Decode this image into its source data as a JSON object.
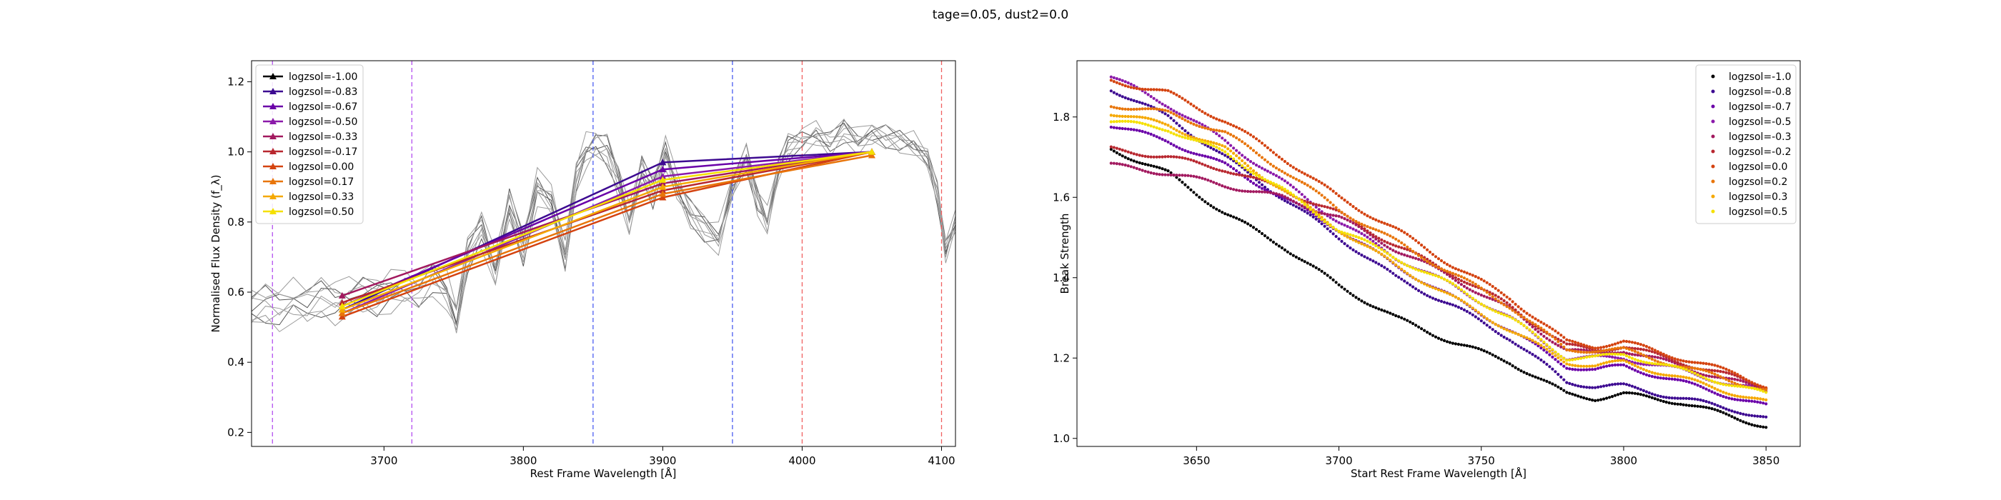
{
  "figure": {
    "suptitle": "tage=0.05, dust2=0.0"
  },
  "chart_data": [
    {
      "type": "line",
      "xlabel": "Rest Frame Wavelength [Å]",
      "ylabel": "Normalised Flux Density (f_λ)",
      "xlim": [
        3605,
        4110
      ],
      "ylim": [
        0.16,
        1.26
      ],
      "xticks": [
        3700,
        3800,
        3900,
        4000,
        4100
      ],
      "yticks": [
        0.2,
        0.4,
        0.6,
        0.8,
        1.0,
        1.2
      ],
      "xtick_labels": [
        "3700",
        "3800",
        "3900",
        "4000",
        "4100"
      ],
      "ytick_labels": [
        "0.2",
        "0.4",
        "0.6",
        "0.8",
        "1.0",
        "1.2"
      ],
      "grid": false,
      "legend_position": "upper-left",
      "vlines": [
        {
          "x": 3620,
          "color": "#b44ff0"
        },
        {
          "x": 3720,
          "color": "#b44ff0"
        },
        {
          "x": 3850,
          "color": "#4a5cf0"
        },
        {
          "x": 3950,
          "color": "#4a5cf0"
        },
        {
          "x": 4000,
          "color": "#f06060"
        },
        {
          "x": 4100,
          "color": "#f06060"
        }
      ],
      "background_spectrum": {
        "x": [
          3605,
          3615,
          3625,
          3635,
          3645,
          3655,
          3665,
          3675,
          3685,
          3695,
          3705,
          3715,
          3725,
          3735,
          3745,
          3752,
          3760,
          3770,
          3780,
          3790,
          3800,
          3810,
          3820,
          3830,
          3838,
          3845,
          3852,
          3860,
          3868,
          3876,
          3885,
          3893,
          3902,
          3910,
          3920,
          3930,
          3940,
          3950,
          3960,
          3968,
          3975,
          3983,
          3990,
          4000,
          4010,
          4020,
          4030,
          4040,
          4050,
          4060,
          4070,
          4080,
          4090,
          4097,
          4103,
          4110
        ],
        "y": [
          0.55,
          0.56,
          0.55,
          0.57,
          0.56,
          0.58,
          0.57,
          0.58,
          0.59,
          0.58,
          0.6,
          0.61,
          0.6,
          0.64,
          0.6,
          0.52,
          0.7,
          0.78,
          0.66,
          0.85,
          0.72,
          0.9,
          0.86,
          0.7,
          0.93,
          1.0,
          1.02,
          1.0,
          0.92,
          0.8,
          0.95,
          0.88,
          1.0,
          0.9,
          0.82,
          0.78,
          0.75,
          0.9,
          0.98,
          0.86,
          0.8,
          0.95,
          1.01,
          1.03,
          1.05,
          1.02,
          1.06,
          1.03,
          1.05,
          1.04,
          1.03,
          1.02,
          0.98,
          0.88,
          0.72,
          0.8
        ],
        "perturb": [
          0.035,
          -0.03,
          0.02,
          -0.045,
          0.05,
          -0.015,
          0.01,
          -0.025,
          0.04
        ]
      },
      "series": [
        {
          "name": "logzsol=-1.00",
          "color": "#000000",
          "points": [
            [
              4050,
              1.0
            ]
          ]
        },
        {
          "name": "logzsol=-0.83",
          "color": "#3d0a91",
          "points": [
            [
              3670,
              0.55
            ],
            [
              3900,
              0.97
            ],
            [
              4050,
              1.0
            ]
          ]
        },
        {
          "name": "logzsol=-0.67",
          "color": "#6a00a8",
          "points": [
            [
              3670,
              0.56
            ],
            [
              3900,
              0.95
            ],
            [
              4050,
              1.0
            ]
          ]
        },
        {
          "name": "logzsol=-0.50",
          "color": "#8b1aaa",
          "points": [
            [
              3670,
              0.54
            ],
            [
              3900,
              0.93
            ],
            [
              4050,
              1.0
            ]
          ]
        },
        {
          "name": "logzsol=-0.33",
          "color": "#a2195f",
          "points": [
            [
              3670,
              0.59
            ],
            [
              3900,
              0.91
            ],
            [
              4050,
              1.0
            ]
          ]
        },
        {
          "name": "logzsol=-0.17",
          "color": "#b8272f",
          "points": [
            [
              3670,
              0.57
            ],
            [
              3900,
              0.89
            ],
            [
              4050,
              1.0
            ]
          ]
        },
        {
          "name": "logzsol=0.00",
          "color": "#d44310",
          "points": [
            [
              3670,
              0.53
            ],
            [
              3900,
              0.87
            ],
            [
              4050,
              1.0
            ]
          ]
        },
        {
          "name": "logzsol=0.17",
          "color": "#e8750a",
          "points": [
            [
              3670,
              0.54
            ],
            [
              3900,
              0.88
            ],
            [
              4050,
              0.99
            ]
          ]
        },
        {
          "name": "logzsol=0.33",
          "color": "#f5a800",
          "points": [
            [
              3670,
              0.55
            ],
            [
              3900,
              0.9
            ],
            [
              4050,
              1.0
            ]
          ]
        },
        {
          "name": "logzsol=0.50",
          "color": "#f5e000",
          "points": [
            [
              3670,
              0.56
            ],
            [
              3900,
              0.92
            ],
            [
              4050,
              1.0
            ]
          ]
        }
      ]
    },
    {
      "type": "scatter",
      "xlabel": "Start Rest Frame Wavelength [Å]",
      "ylabel": "Break Strength",
      "xlim": [
        3608,
        3862
      ],
      "ylim": [
        0.98,
        1.94
      ],
      "xticks": [
        3650,
        3700,
        3750,
        3800,
        3850
      ],
      "yticks": [
        1.0,
        1.2,
        1.4,
        1.6,
        1.8
      ],
      "xtick_labels": [
        "3650",
        "3700",
        "3750",
        "3800",
        "3850"
      ],
      "ytick_labels": [
        "1.0",
        "1.2",
        "1.4",
        "1.6",
        "1.8"
      ],
      "grid": false,
      "legend_position": "upper-right",
      "x_range": [
        3620,
        3850
      ],
      "series": [
        {
          "name": "logzsol=-1.0",
          "color": "#000000",
          "anchors": [
            [
              3620,
              1.72
            ],
            [
              3640,
              1.66
            ],
            [
              3660,
              1.56
            ],
            [
              3680,
              1.48
            ],
            [
              3700,
              1.38
            ],
            [
              3720,
              1.3
            ],
            [
              3740,
              1.24
            ],
            [
              3760,
              1.19
            ],
            [
              3780,
              1.11
            ],
            [
              3790,
              1.1
            ],
            [
              3800,
              1.11
            ],
            [
              3820,
              1.09
            ],
            [
              3840,
              1.05
            ],
            [
              3850,
              1.03
            ]
          ]
        },
        {
          "name": "logzsol=-0.8",
          "color": "#3d0a91",
          "anchors": [
            [
              3620,
              1.87
            ],
            [
              3640,
              1.8
            ],
            [
              3660,
              1.7
            ],
            [
              3680,
              1.6
            ],
            [
              3700,
              1.5
            ],
            [
              3720,
              1.4
            ],
            [
              3740,
              1.33
            ],
            [
              3760,
              1.25
            ],
            [
              3780,
              1.14
            ],
            [
              3790,
              1.13
            ],
            [
              3800,
              1.13
            ],
            [
              3820,
              1.1
            ],
            [
              3840,
              1.07
            ],
            [
              3850,
              1.05
            ]
          ]
        },
        {
          "name": "logzsol=-0.7",
          "color": "#6a00a8",
          "anchors": [
            [
              3620,
              1.78
            ],
            [
              3640,
              1.74
            ],
            [
              3660,
              1.68
            ],
            [
              3680,
              1.6
            ],
            [
              3700,
              1.52
            ],
            [
              3720,
              1.43
            ],
            [
              3740,
              1.35
            ],
            [
              3760,
              1.27
            ],
            [
              3780,
              1.18
            ],
            [
              3790,
              1.17
            ],
            [
              3800,
              1.18
            ],
            [
              3820,
              1.14
            ],
            [
              3840,
              1.1
            ],
            [
              3850,
              1.08
            ]
          ]
        },
        {
          "name": "logzsol=-0.5",
          "color": "#8b1aaa",
          "anchors": [
            [
              3620,
              1.9
            ],
            [
              3640,
              1.83
            ],
            [
              3660,
              1.74
            ],
            [
              3680,
              1.64
            ],
            [
              3700,
              1.54
            ],
            [
              3720,
              1.45
            ],
            [
              3740,
              1.38
            ],
            [
              3760,
              1.3
            ],
            [
              3780,
              1.2
            ],
            [
              3790,
              1.2
            ],
            [
              3800,
              1.2
            ],
            [
              3820,
              1.17
            ],
            [
              3840,
              1.13
            ],
            [
              3850,
              1.12
            ]
          ]
        },
        {
          "name": "logzsol=-0.3",
          "color": "#a2195f",
          "anchors": [
            [
              3620,
              1.68
            ],
            [
              3640,
              1.66
            ],
            [
              3660,
              1.63
            ],
            [
              3680,
              1.6
            ],
            [
              3700,
              1.55
            ],
            [
              3720,
              1.47
            ],
            [
              3740,
              1.4
            ],
            [
              3760,
              1.32
            ],
            [
              3780,
              1.22
            ],
            [
              3790,
              1.21
            ],
            [
              3800,
              1.22
            ],
            [
              3820,
              1.18
            ],
            [
              3840,
              1.14
            ],
            [
              3850,
              1.12
            ]
          ]
        },
        {
          "name": "logzsol=-0.2",
          "color": "#b8272f",
          "anchors": [
            [
              3620,
              1.72
            ],
            [
              3640,
              1.7
            ],
            [
              3660,
              1.67
            ],
            [
              3680,
              1.62
            ],
            [
              3700,
              1.56
            ],
            [
              3720,
              1.48
            ],
            [
              3740,
              1.41
            ],
            [
              3760,
              1.33
            ],
            [
              3780,
              1.23
            ],
            [
              3790,
              1.22
            ],
            [
              3800,
              1.23
            ],
            [
              3820,
              1.19
            ],
            [
              3840,
              1.15
            ],
            [
              3850,
              1.13
            ]
          ]
        },
        {
          "name": "logzsol=0.0",
          "color": "#d44310",
          "anchors": [
            [
              3620,
              1.89
            ],
            [
              3640,
              1.86
            ],
            [
              3660,
              1.79
            ],
            [
              3680,
              1.7
            ],
            [
              3700,
              1.6
            ],
            [
              3720,
              1.52
            ],
            [
              3740,
              1.43
            ],
            [
              3760,
              1.35
            ],
            [
              3780,
              1.24
            ],
            [
              3790,
              1.23
            ],
            [
              3800,
              1.24
            ],
            [
              3820,
              1.2
            ],
            [
              3840,
              1.16
            ],
            [
              3850,
              1.13
            ]
          ]
        },
        {
          "name": "logzsol=0.2",
          "color": "#e8750a",
          "anchors": [
            [
              3620,
              1.83
            ],
            [
              3640,
              1.81
            ],
            [
              3660,
              1.76
            ],
            [
              3680,
              1.67
            ],
            [
              3700,
              1.57
            ],
            [
              3720,
              1.49
            ],
            [
              3740,
              1.41
            ],
            [
              3760,
              1.33
            ],
            [
              3780,
              1.22
            ],
            [
              3790,
              1.22
            ],
            [
              3800,
              1.22
            ],
            [
              3820,
              1.18
            ],
            [
              3840,
              1.14
            ],
            [
              3850,
              1.12
            ]
          ]
        },
        {
          "name": "logzsol=0.3",
          "color": "#f5a800",
          "anchors": [
            [
              3620,
              1.81
            ],
            [
              3640,
              1.78
            ],
            [
              3660,
              1.72
            ],
            [
              3680,
              1.62
            ],
            [
              3700,
              1.52
            ],
            [
              3720,
              1.43
            ],
            [
              3740,
              1.35
            ],
            [
              3760,
              1.27
            ],
            [
              3780,
              1.19
            ],
            [
              3790,
              1.18
            ],
            [
              3800,
              1.19
            ],
            [
              3820,
              1.15
            ],
            [
              3840,
              1.11
            ],
            [
              3850,
              1.09
            ]
          ]
        },
        {
          "name": "logzsol=0.5",
          "color": "#f5e000",
          "anchors": [
            [
              3620,
              1.79
            ],
            [
              3640,
              1.77
            ],
            [
              3660,
              1.71
            ],
            [
              3680,
              1.62
            ],
            [
              3700,
              1.52
            ],
            [
              3720,
              1.45
            ],
            [
              3740,
              1.38
            ],
            [
              3760,
              1.3
            ],
            [
              3780,
              1.2
            ],
            [
              3790,
              1.2
            ],
            [
              3800,
              1.21
            ],
            [
              3820,
              1.17
            ],
            [
              3840,
              1.13
            ],
            [
              3850,
              1.11
            ]
          ]
        }
      ]
    }
  ]
}
